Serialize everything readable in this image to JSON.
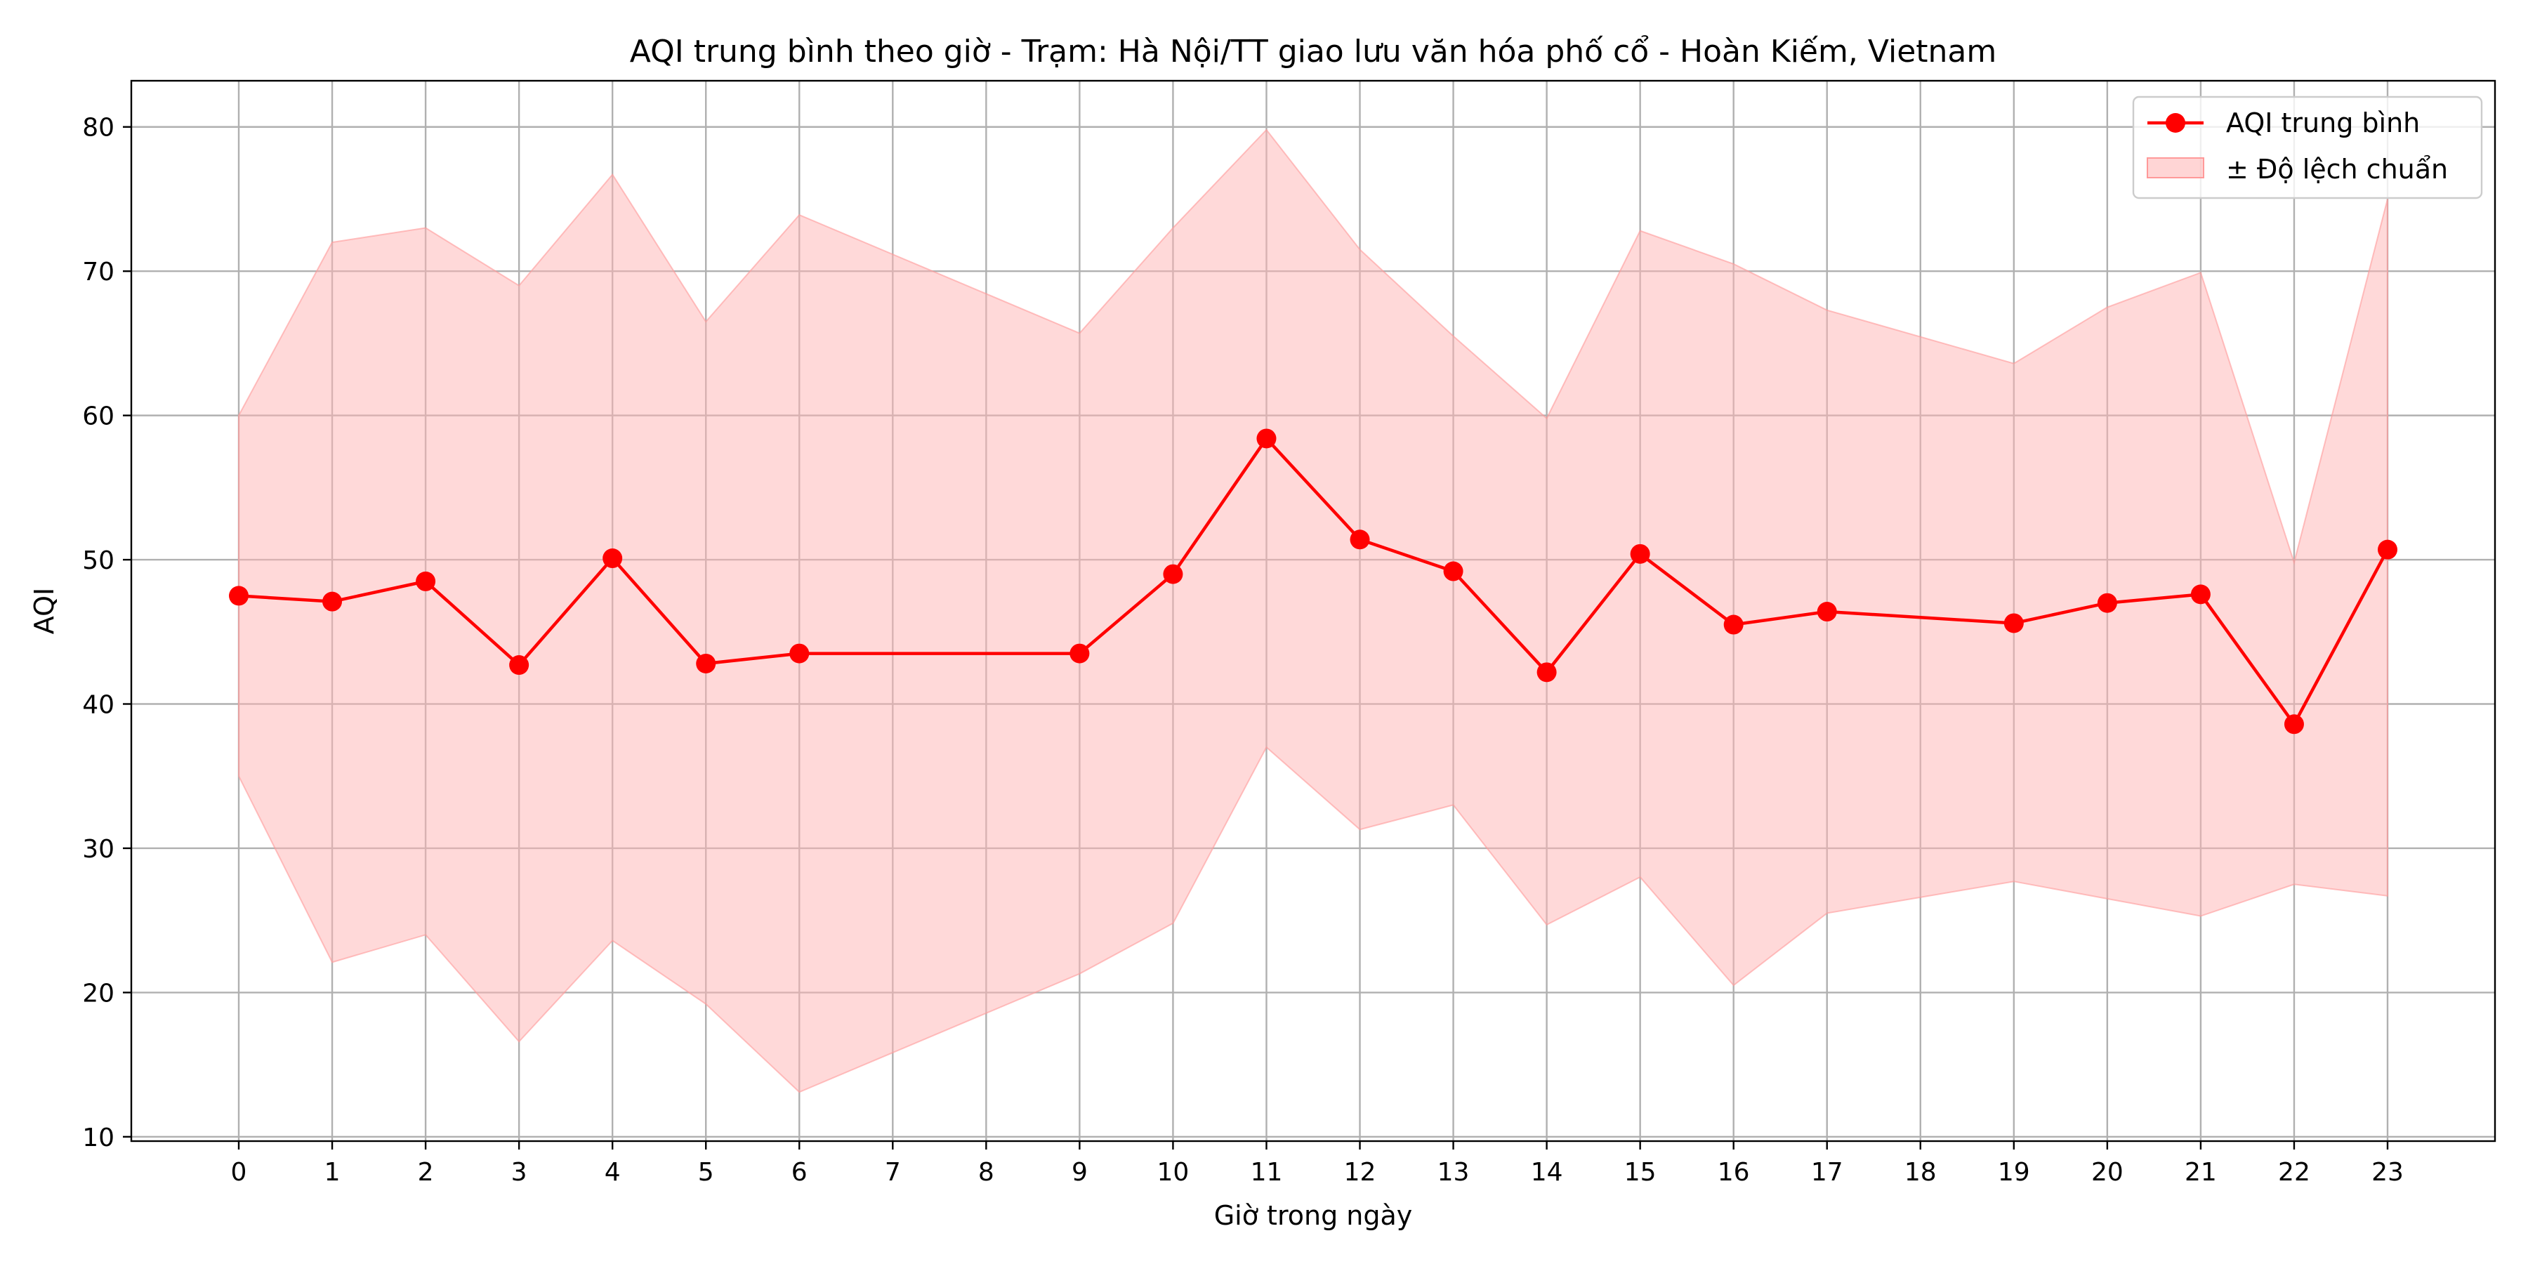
{
  "chart_data": {
    "type": "line",
    "title": "AQI trung bình theo giờ - Trạm: Hà Nội/TT giao lưu văn hóa phố cổ - Hoàn Kiếm, Vietnam",
    "xlabel": "Giờ trong ngày",
    "ylabel": "AQI",
    "xlim": [
      -1.15,
      24.15
    ],
    "ylim": [
      9.7,
      83.2
    ],
    "xticks": [
      0,
      1,
      2,
      3,
      4,
      5,
      6,
      7,
      8,
      9,
      10,
      11,
      12,
      13,
      14,
      15,
      16,
      17,
      18,
      19,
      20,
      21,
      22,
      23
    ],
    "yticks": [
      10,
      20,
      30,
      40,
      50,
      60,
      70,
      80
    ],
    "grid": true,
    "legend_position": "top-right",
    "colors": {
      "line": "#ff0000",
      "band": "#ffb3b3"
    },
    "x": [
      0,
      1,
      2,
      3,
      4,
      5,
      6,
      9,
      10,
      11,
      12,
      13,
      14,
      15,
      16,
      17,
      19,
      20,
      21,
      22,
      23
    ],
    "series": [
      {
        "name": "AQI trung bình",
        "values": [
          47.5,
          47.1,
          48.5,
          42.7,
          50.1,
          42.8,
          43.5,
          43.5,
          49.0,
          58.4,
          51.4,
          49.2,
          42.2,
          50.4,
          45.5,
          46.4,
          45.6,
          47.0,
          47.6,
          38.6,
          50.7
        ]
      }
    ],
    "band": {
      "name": "± Độ lệch chuẩn",
      "upper": [
        60.0,
        72.0,
        73.0,
        69.0,
        76.7,
        66.5,
        73.9,
        65.7,
        73.0,
        79.8,
        71.5,
        65.5,
        59.8,
        72.8,
        70.5,
        67.3,
        63.6,
        67.5,
        69.9,
        49.8,
        75.0
      ],
      "lower": [
        35.0,
        22.1,
        24.0,
        16.6,
        23.6,
        19.2,
        13.1,
        21.3,
        24.8,
        37.0,
        31.3,
        33.0,
        24.7,
        28.0,
        20.5,
        25.5,
        27.7,
        26.5,
        25.3,
        27.5,
        26.7
      ]
    }
  }
}
